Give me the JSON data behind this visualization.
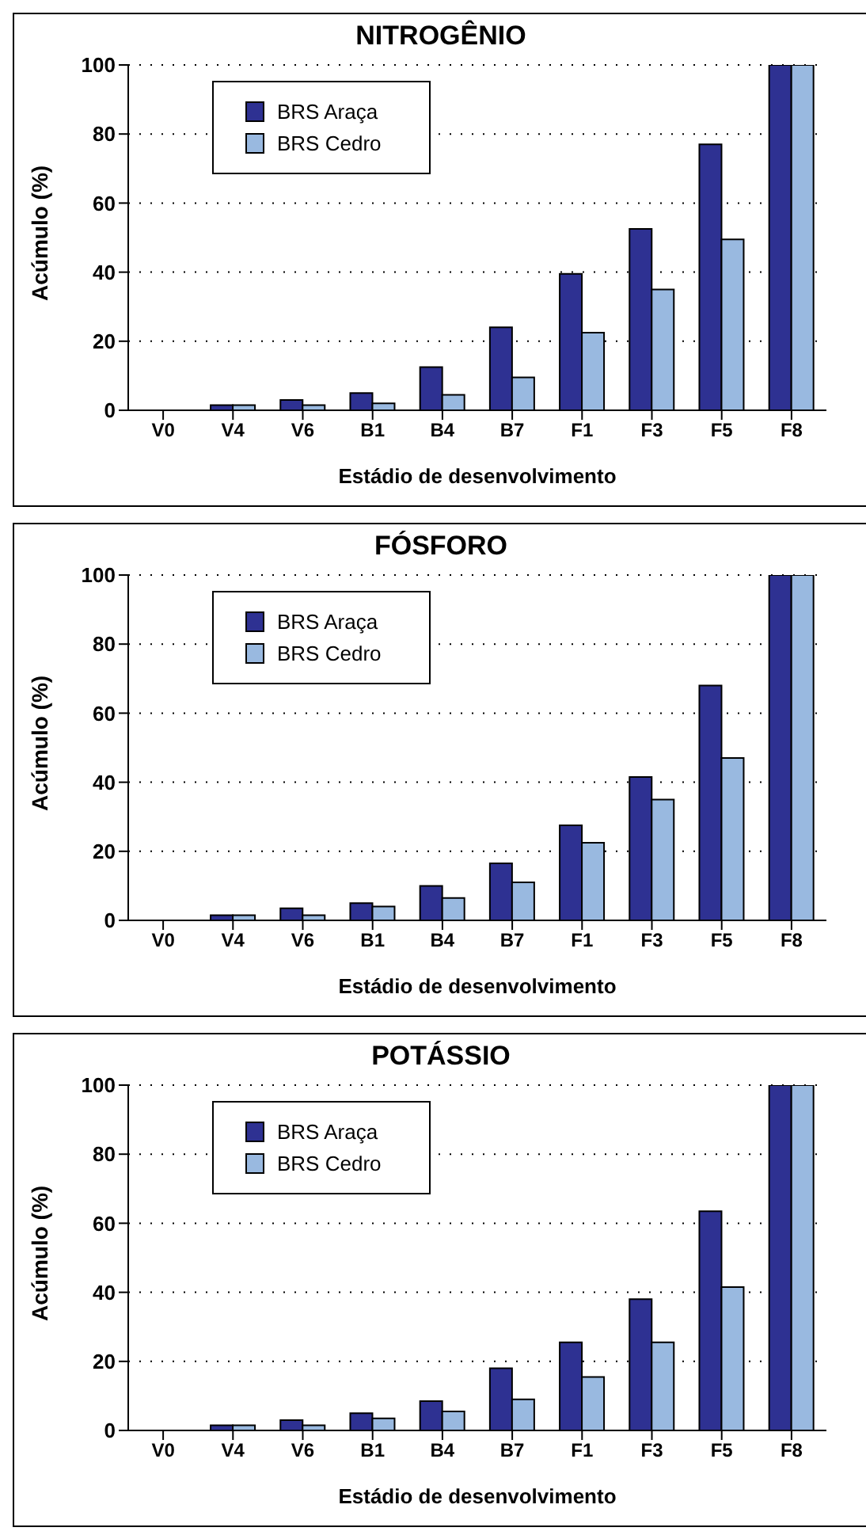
{
  "chart_data": [
    {
      "type": "bar",
      "title": "NITROGÊNIO",
      "xlabel": "Estádio de desenvolvimento",
      "ylabel": "Acúmulo (%)",
      "categories": [
        "V0",
        "V4",
        "V6",
        "B1",
        "B4",
        "B7",
        "F1",
        "F3",
        "F5",
        "F8"
      ],
      "series": [
        {
          "name": "BRS Araça",
          "color": "#2e3192",
          "values": [
            0,
            1.5,
            3,
            5,
            12.5,
            24,
            39.5,
            52.5,
            77,
            100
          ]
        },
        {
          "name": "BRS Cedro",
          "color": "#99b9e0",
          "values": [
            0,
            1.5,
            1.5,
            2,
            4.5,
            9.5,
            22.5,
            35,
            49.5,
            100
          ]
        }
      ],
      "ylim": [
        0,
        100
      ],
      "yticks": [
        0,
        20,
        40,
        60,
        80,
        100
      ],
      "grid": "y",
      "legend": "top left"
    },
    {
      "type": "bar",
      "title": "FÓSFORO",
      "xlabel": "Estádio de desenvolvimento",
      "ylabel": "Acúmulo (%)",
      "categories": [
        "V0",
        "V4",
        "V6",
        "B1",
        "B4",
        "B7",
        "F1",
        "F3",
        "F5",
        "F8"
      ],
      "series": [
        {
          "name": "BRS Araça",
          "color": "#2e3192",
          "values": [
            0,
            1.5,
            3.5,
            5,
            10,
            16.5,
            27.5,
            41.5,
            68,
            100
          ]
        },
        {
          "name": "BRS Cedro",
          "color": "#99b9e0",
          "values": [
            0,
            1.5,
            1.5,
            4,
            6.5,
            11,
            22.5,
            35,
            47,
            100
          ]
        }
      ],
      "ylim": [
        0,
        100
      ],
      "yticks": [
        0,
        20,
        40,
        60,
        80,
        100
      ],
      "grid": "y",
      "legend": "top left"
    },
    {
      "type": "bar",
      "title": "POTÁSSIO",
      "xlabel": "Estádio de desenvolvimento",
      "ylabel": "Acúmulo (%)",
      "categories": [
        "V0",
        "V4",
        "V6",
        "B1",
        "B4",
        "B7",
        "F1",
        "F3",
        "F5",
        "F8"
      ],
      "series": [
        {
          "name": "BRS Araça",
          "color": "#2e3192",
          "values": [
            0,
            1.5,
            3,
            5,
            8.5,
            18,
            25.5,
            38,
            63.5,
            100
          ]
        },
        {
          "name": "BRS Cedro",
          "color": "#99b9e0",
          "values": [
            0,
            1.5,
            1.5,
            3.5,
            5.5,
            9,
            15.5,
            25.5,
            41.5,
            100
          ]
        }
      ],
      "ylim": [
        0,
        100
      ],
      "yticks": [
        0,
        20,
        40,
        60,
        80,
        100
      ],
      "grid": "y",
      "legend": "top left"
    }
  ]
}
